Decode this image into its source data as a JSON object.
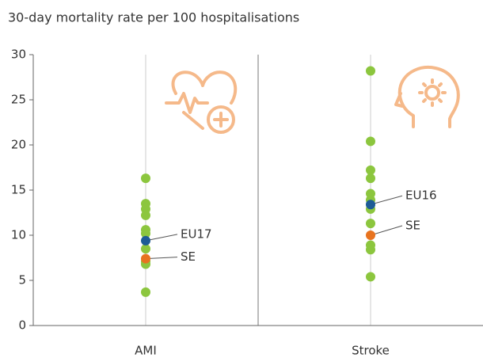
{
  "chart_data": {
    "type": "strip",
    "title": "30-day mortality rate per 100 hospitalisations",
    "categories": [
      "AMI",
      "Stroke"
    ],
    "values": [
      [
        16.3,
        13.5,
        12.9,
        12.2,
        10.6,
        10.2,
        8.5,
        7.1,
        6.8,
        3.7
      ],
      [
        28.2,
        20.4,
        17.2,
        16.3,
        14.6,
        13.9,
        12.9,
        11.3,
        8.9,
        8.4,
        5.4
      ]
    ],
    "color": "#8cc63e",
    "highlights": [
      [
        {
          "label": "EU17",
          "value": 9.4,
          "color": "#1d5c96"
        },
        {
          "label": "SE",
          "value": 7.4,
          "color": "#e8731f"
        }
      ],
      [
        {
          "label": "EU16",
          "value": 13.4,
          "color": "#1d5c96"
        },
        {
          "label": "SE",
          "value": 10.0,
          "color": "#e8731f"
        }
      ]
    ],
    "ylim": [
      0,
      30
    ],
    "yticks": [
      0,
      5,
      10,
      15,
      20,
      25,
      30
    ]
  }
}
